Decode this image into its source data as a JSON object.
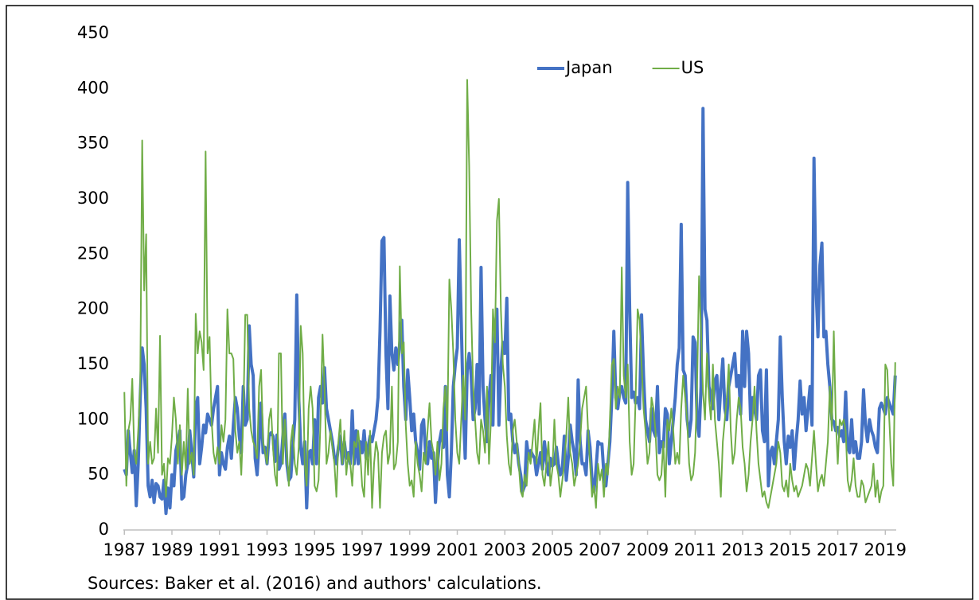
{
  "chart_data": {
    "type": "line",
    "note": "Sources: Baker et al. (2016) and authors' calculations.",
    "legend": "upper-center",
    "ylim": [
      0,
      450
    ],
    "yticks": [
      0,
      50,
      100,
      150,
      200,
      250,
      300,
      350,
      400,
      450
    ],
    "categories": [
      "1987",
      null,
      null,
      null,
      null,
      null,
      null,
      null,
      null,
      null,
      null,
      null,
      null,
      null,
      null,
      null,
      null,
      null,
      null,
      null,
      null,
      null,
      null,
      null,
      "1989",
      null,
      null,
      null,
      null,
      null,
      null,
      null,
      null,
      null,
      null,
      null,
      null,
      null,
      null,
      null,
      null,
      null,
      null,
      null,
      null,
      null,
      null,
      null,
      "1991",
      null,
      null,
      null,
      null,
      null,
      null,
      null,
      null,
      null,
      null,
      null,
      null,
      null,
      null,
      null,
      null,
      null,
      null,
      null,
      null,
      null,
      null,
      null,
      "1993",
      null,
      null,
      null,
      null,
      null,
      null,
      null,
      null,
      null,
      null,
      null,
      null,
      null,
      null,
      null,
      null,
      null,
      null,
      null,
      null,
      null,
      null,
      null,
      "1995",
      null,
      null,
      null,
      null,
      null,
      null,
      null,
      null,
      null,
      null,
      null,
      null,
      null,
      null,
      null,
      null,
      null,
      null,
      null,
      null,
      null,
      null,
      null,
      "1997",
      null,
      null,
      null,
      null,
      null,
      null,
      null,
      null,
      null,
      null,
      null,
      null,
      null,
      null,
      null,
      null,
      null,
      null,
      null,
      null,
      null,
      null,
      null,
      "1999",
      null,
      null,
      null,
      null,
      null,
      null,
      null,
      null,
      null,
      null,
      null,
      null,
      null,
      null,
      null,
      null,
      null,
      null,
      null,
      null,
      null,
      null,
      null,
      "2001",
      null,
      null,
      null,
      null,
      null,
      null,
      null,
      null,
      null,
      null,
      null,
      null,
      null,
      null,
      null,
      null,
      null,
      null,
      null,
      null,
      null,
      null,
      null,
      "2003",
      null,
      null,
      null,
      null,
      null,
      null,
      null,
      null,
      null,
      null,
      null,
      null,
      null,
      null,
      null,
      null,
      null,
      null,
      null,
      null,
      null,
      null,
      null,
      "2005",
      null,
      null,
      null,
      null,
      null,
      null,
      null,
      null,
      null,
      null,
      null,
      null,
      null,
      null,
      null,
      null,
      null,
      null,
      null,
      null,
      null,
      null,
      null,
      "2007",
      null,
      null,
      null,
      null,
      null,
      null,
      null,
      null,
      null,
      null,
      null,
      null,
      null,
      null,
      null,
      null,
      null,
      null,
      null,
      null,
      null,
      null,
      null,
      "2009",
      null,
      null,
      null,
      null,
      null,
      null,
      null,
      null,
      null,
      null,
      null,
      null,
      null,
      null,
      null,
      null,
      null,
      null,
      null,
      null,
      null,
      null,
      null,
      "2011",
      null,
      null,
      null,
      null,
      null,
      null,
      null,
      null,
      null,
      null,
      null,
      null,
      null,
      null,
      null,
      null,
      null,
      null,
      null,
      null,
      null,
      null,
      null,
      "2013",
      null,
      null,
      null,
      null,
      null,
      null,
      null,
      null,
      null,
      null,
      null,
      null,
      null,
      null,
      null,
      null,
      null,
      null,
      null,
      null,
      null,
      null,
      null,
      "2015",
      null,
      null,
      null,
      null,
      null,
      null,
      null,
      null,
      null,
      null,
      null,
      null,
      null,
      null,
      null,
      null,
      null,
      null,
      null,
      null,
      null,
      null,
      null,
      "2017",
      null,
      null,
      null,
      null,
      null,
      null,
      null,
      null,
      null,
      null,
      null,
      null,
      null,
      null,
      null,
      null,
      null,
      null,
      null,
      null,
      null,
      null,
      null,
      "2019",
      null,
      null,
      null,
      null,
      null
    ],
    "series": [
      {
        "name": "Japan",
        "color": "#4472c4",
        "width": 4,
        "values": [
          55,
          50,
          90,
          70,
          52,
          72,
          22,
          60,
          120,
          165,
          150,
          110,
          40,
          30,
          45,
          25,
          42,
          40,
          30,
          28,
          45,
          15,
          38,
          20,
          50,
          40,
          72,
          80,
          90,
          28,
          30,
          50,
          60,
          90,
          70,
          48,
          110,
          120,
          60,
          75,
          95,
          88,
          105,
          100,
          95,
          110,
          120,
          130,
          50,
          70,
          60,
          55,
          75,
          85,
          65,
          95,
          120,
          110,
          85,
          70,
          130,
          95,
          100,
          185,
          150,
          140,
          65,
          50,
          80,
          115,
          70,
          75,
          60,
          85,
          88,
          85,
          62,
          86,
          55,
          60,
          85,
          105,
          60,
          45,
          48,
          75,
          100,
          213,
          120,
          75,
          60,
          80,
          20,
          70,
          72,
          60,
          100,
          60,
          120,
          130,
          115,
          147,
          110,
          100,
          90,
          80,
          65,
          60,
          75,
          85,
          60,
          80,
          65,
          70,
          60,
          108,
          60,
          90,
          60,
          80,
          70,
          90,
          65,
          75,
          85,
          80,
          90,
          100,
          120,
          180,
          262,
          265,
          160,
          110,
          212,
          160,
          145,
          165,
          150,
          170,
          190,
          130,
          100,
          145,
          120,
          90,
          105,
          80,
          70,
          55,
          95,
          100,
          70,
          60,
          80,
          65,
          70,
          25,
          60,
          80,
          90,
          75,
          130,
          50,
          30,
          70,
          130,
          150,
          165,
          263,
          190,
          110,
          65,
          145,
          160,
          140,
          100,
          110,
          150,
          105,
          238,
          130,
          100,
          80,
          120,
          140,
          95,
          180,
          200,
          95,
          145,
          170,
          160,
          210,
          100,
          105,
          80,
          70,
          78,
          60,
          50,
          35,
          40,
          80,
          65,
          72,
          68,
          65,
          50,
          60,
          70,
          55,
          80,
          62,
          50,
          65,
          58,
          60,
          75,
          60,
          50,
          55,
          85,
          45,
          65,
          95,
          80,
          70,
          50,
          136,
          80,
          60,
          60,
          50,
          90,
          75,
          45,
          35,
          55,
          80,
          78,
          78,
          50,
          40,
          60,
          80,
          120,
          180,
          120,
          110,
          125,
          130,
          120,
          115,
          315,
          200,
          120,
          125,
          115,
          120,
          110,
          195,
          140,
          100,
          90,
          80,
          110,
          90,
          85,
          130,
          70,
          80,
          75,
          110,
          105,
          60,
          80,
          100,
          120,
          150,
          165,
          277,
          145,
          140,
          100,
          85,
          100,
          175,
          170,
          100,
          85,
          130,
          382,
          200,
          190,
          130,
          120,
          110,
          135,
          140,
          100,
          130,
          155,
          110,
          100,
          130,
          140,
          150,
          160,
          130,
          140,
          105,
          180,
          130,
          180,
          160,
          100,
          120,
          110,
          100,
          140,
          145,
          90,
          80,
          145,
          40,
          70,
          75,
          60,
          80,
          100,
          175,
          120,
          80,
          60,
          85,
          75,
          90,
          55,
          80,
          100,
          135,
          105,
          120,
          90,
          110,
          130,
          95,
          337,
          220,
          175,
          240,
          260,
          175,
          180,
          150,
          130,
          100,
          98,
          90,
          93,
          85,
          90,
          80,
          125,
          75,
          70,
          100,
          70,
          80,
          65,
          65,
          80,
          127,
          95,
          80,
          100,
          90,
          85,
          75,
          70,
          110,
          115,
          110,
          105,
          120,
          115,
          110,
          105,
          140
        ]
      },
      {
        "name": "US",
        "color": "#70ad47",
        "width": 2,
        "values": [
          125,
          40,
          90,
          100,
          137,
          70,
          60,
          90,
          130,
          353,
          217,
          268,
          60,
          80,
          60,
          65,
          110,
          70,
          176,
          50,
          60,
          30,
          65,
          60,
          85,
          120,
          100,
          60,
          95,
          50,
          80,
          55,
          128,
          60,
          70,
          50,
          196,
          160,
          180,
          170,
          145,
          343,
          160,
          175,
          100,
          70,
          60,
          75,
          60,
          95,
          80,
          100,
          200,
          160,
          160,
          155,
          90,
          70,
          80,
          50,
          100,
          195,
          195,
          110,
          90,
          80,
          75,
          65,
          130,
          145,
          80,
          70,
          60,
          100,
          110,
          75,
          50,
          40,
          160,
          160,
          60,
          100,
          70,
          40,
          80,
          95,
          60,
          50,
          75,
          185,
          160,
          60,
          40,
          110,
          130,
          110,
          40,
          35,
          45,
          100,
          177,
          130,
          60,
          70,
          90,
          75,
          60,
          30,
          80,
          100,
          60,
          90,
          50,
          70,
          60,
          40,
          80,
          75,
          90,
          70,
          40,
          30,
          80,
          50,
          90,
          20,
          60,
          80,
          70,
          20,
          70,
          85,
          90,
          60,
          70,
          130,
          55,
          60,
          80,
          239,
          160,
          170,
          95,
          60,
          40,
          45,
          30,
          80,
          60,
          50,
          35,
          70,
          60,
          90,
          115,
          80,
          70,
          50,
          80,
          45,
          60,
          110,
          130,
          90,
          227,
          200,
          160,
          100,
          70,
          60,
          100,
          140,
          100,
          408,
          330,
          200,
          130,
          100,
          70,
          60,
          100,
          90,
          70,
          130,
          60,
          100,
          200,
          170,
          280,
          300,
          200,
          150,
          130,
          85,
          60,
          50,
          90,
          100,
          80,
          60,
          35,
          30,
          50,
          40,
          70,
          60,
          80,
          100,
          60,
          90,
          115,
          50,
          40,
          60,
          80,
          40,
          55,
          100,
          60,
          50,
          30,
          45,
          60,
          85,
          120,
          70,
          60,
          40,
          50,
          60,
          80,
          110,
          120,
          130,
          90,
          60,
          30,
          40,
          20,
          60,
          45,
          55,
          30,
          60,
          50,
          100,
          150,
          155,
          110,
          130,
          120,
          238,
          140,
          120,
          150,
          80,
          50,
          60,
          120,
          200,
          190,
          150,
          110,
          90,
          60,
          70,
          120,
          110,
          90,
          50,
          45,
          50,
          80,
          30,
          100,
          90,
          110,
          90,
          60,
          70,
          60,
          110,
          140,
          120,
          100,
          60,
          45,
          50,
          70,
          130,
          230,
          180,
          125,
          100,
          160,
          120,
          100,
          150,
          100,
          80,
          60,
          30,
          80,
          100,
          120,
          150,
          90,
          60,
          70,
          100,
          120,
          110,
          75,
          60,
          35,
          50,
          80,
          100,
          130,
          90,
          60,
          45,
          30,
          35,
          25,
          20,
          30,
          40,
          50,
          60,
          80,
          70,
          40,
          35,
          45,
          30,
          60,
          45,
          35,
          40,
          30,
          35,
          40,
          50,
          60,
          55,
          40,
          65,
          90,
          60,
          35,
          45,
          50,
          40,
          60,
          80,
          130,
          90,
          180,
          100,
          60,
          100,
          95,
          100,
          90,
          45,
          35,
          45,
          65,
          40,
          30,
          30,
          45,
          40,
          25,
          30,
          35,
          40,
          60,
          30,
          45,
          25,
          35,
          40,
          150,
          145,
          100,
          60,
          40,
          152
        ]
      }
    ]
  }
}
